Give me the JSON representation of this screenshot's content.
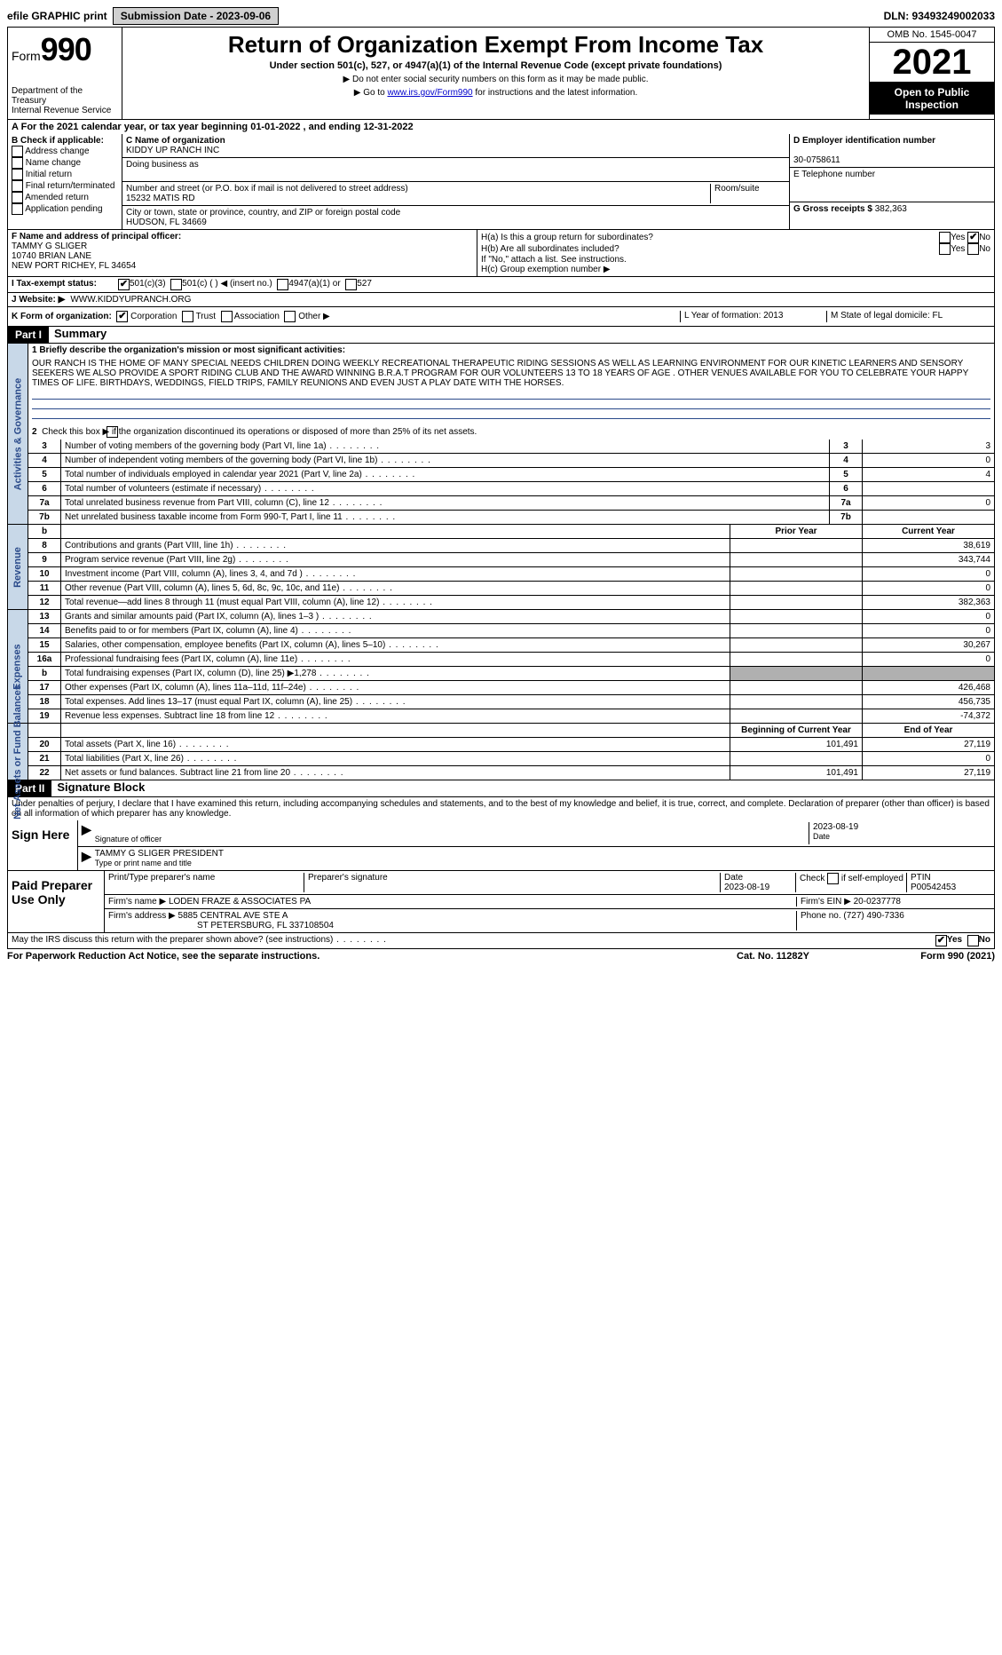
{
  "topbar": {
    "efile": "efile GRAPHIC print",
    "subdate_label": "Submission Date - 2023-09-06",
    "dln": "DLN: 93493249002033"
  },
  "header": {
    "form_word": "Form",
    "form_num": "990",
    "dept": "Department of the Treasury",
    "irs": "Internal Revenue Service",
    "title": "Return of Organization Exempt From Income Tax",
    "sub": "Under section 501(c), 527, or 4947(a)(1) of the Internal Revenue Code (except private foundations)",
    "note1": "▶ Do not enter social security numbers on this form as it may be made public.",
    "note2_pre": "▶ Go to ",
    "note2_link": "www.irs.gov/Form990",
    "note2_post": " for instructions and the latest information.",
    "omb": "OMB No. 1545-0047",
    "year": "2021",
    "openpub": "Open to Public Inspection"
  },
  "period": "For the 2021 calendar year, or tax year beginning 01-01-2022   , and ending 12-31-2022",
  "sectionB": {
    "label": "B Check if applicable:",
    "items": [
      "Address change",
      "Name change",
      "Initial return",
      "Final return/terminated",
      "Amended return",
      "Application pending"
    ]
  },
  "sectionC": {
    "name_label": "C Name of organization",
    "name": "KIDDY UP RANCH INC",
    "dba_label": "Doing business as",
    "addr_label": "Number and street (or P.O. box if mail is not delivered to street address)",
    "room_label": "Room/suite",
    "addr": "15232 MATIS RD",
    "city_label": "City or town, state or province, country, and ZIP or foreign postal code",
    "city": "HUDSON, FL  34669"
  },
  "sectionD": {
    "label": "D Employer identification number",
    "val": "30-0758611"
  },
  "sectionE": {
    "label": "E Telephone number"
  },
  "sectionG": {
    "label": "G Gross receipts $",
    "val": "382,363"
  },
  "sectionF": {
    "label": "F  Name and address of principal officer:",
    "name": "TAMMY G SLIGER",
    "addr1": "10740 BRIAN LANE",
    "addr2": "NEW PORT RICHEY, FL  34654"
  },
  "sectionH": {
    "a": "H(a)  Is this a group return for subordinates?",
    "b": "H(b)  Are all subordinates included?",
    "b_note": "If \"No,\" attach a list. See instructions.",
    "c": "H(c)  Group exemption number ▶",
    "yes": "Yes",
    "no": "No"
  },
  "rowI": {
    "label": "I  Tax-exempt status:",
    "opt1": "501(c)(3)",
    "opt2": "501(c) (  ) ◀ (insert no.)",
    "opt3": "4947(a)(1) or",
    "opt4": "527"
  },
  "rowJ": {
    "label": "J  Website: ▶",
    "val": "WWW.KIDDYUPRANCH.ORG"
  },
  "rowK": {
    "label": "K Form of organization:",
    "opts": [
      "Corporation",
      "Trust",
      "Association",
      "Other ▶"
    ],
    "L": "L Year of formation: 2013",
    "M": "M State of legal domicile: FL"
  },
  "part1": {
    "bar": "Part I",
    "title": "Summary",
    "l1_label": "1  Briefly describe the organization's mission or most significant activities:",
    "mission": "OUR RANCH IS THE HOME OF MANY SPECIAL NEEDS CHILDREN DOING WEEKLY RECREATIONAL THERAPEUTIC RIDING SESSIONS AS WELL AS LEARNING ENVIRONMENT FOR OUR KINETIC LEARNERS AND SENSORY SEEKERS WE ALSO PROVIDE A SPORT RIDING CLUB AND THE AWARD WINNING B.R.A.T PROGRAM FOR OUR VOLUNTEERS 13 TO 18 YEARS OF AGE . OTHER VENUES AVAILABLE FOR YOU TO CELEBRATE YOUR HAPPY TIMES OF LIFE. BIRTHDAYS, WEDDINGS, FIELD TRIPS, FAMILY REUNIONS AND EVEN JUST A PLAY DATE WITH THE HORSES."
  },
  "gov": {
    "vlabel": "Activities & Governance",
    "l2": "Check this box ▶      if the organization discontinued its operations or disposed of more than 25% of its net assets.",
    "rows": [
      {
        "n": "3",
        "t": "Number of voting members of the governing body (Part VI, line 1a)",
        "l": "3",
        "v": "3"
      },
      {
        "n": "4",
        "t": "Number of independent voting members of the governing body (Part VI, line 1b)",
        "l": "4",
        "v": "0"
      },
      {
        "n": "5",
        "t": "Total number of individuals employed in calendar year 2021 (Part V, line 2a)",
        "l": "5",
        "v": "4"
      },
      {
        "n": "6",
        "t": "Total number of volunteers (estimate if necessary)",
        "l": "6",
        "v": ""
      },
      {
        "n": "7a",
        "t": "Total unrelated business revenue from Part VIII, column (C), line 12",
        "l": "7a",
        "v": "0"
      },
      {
        "n": "7b",
        "t": "Net unrelated business taxable income from Form 990-T, Part I, line 11",
        "l": "7b",
        "v": ""
      }
    ]
  },
  "rev": {
    "vlabel": "Revenue",
    "hdr_prior": "Prior Year",
    "hdr_curr": "Current Year",
    "rows": [
      {
        "n": "8",
        "t": "Contributions and grants (Part VIII, line 1h)",
        "p": "",
        "c": "38,619"
      },
      {
        "n": "9",
        "t": "Program service revenue (Part VIII, line 2g)",
        "p": "",
        "c": "343,744"
      },
      {
        "n": "10",
        "t": "Investment income (Part VIII, column (A), lines 3, 4, and 7d )",
        "p": "",
        "c": "0"
      },
      {
        "n": "11",
        "t": "Other revenue (Part VIII, column (A), lines 5, 6d, 8c, 9c, 10c, and 11e)",
        "p": "",
        "c": "0"
      },
      {
        "n": "12",
        "t": "Total revenue—add lines 8 through 11 (must equal Part VIII, column (A), line 12)",
        "p": "",
        "c": "382,363"
      }
    ]
  },
  "exp": {
    "vlabel": "Expenses",
    "rows": [
      {
        "n": "13",
        "t": "Grants and similar amounts paid (Part IX, column (A), lines 1–3 )",
        "p": "",
        "c": "0"
      },
      {
        "n": "14",
        "t": "Benefits paid to or for members (Part IX, column (A), line 4)",
        "p": "",
        "c": "0"
      },
      {
        "n": "15",
        "t": "Salaries, other compensation, employee benefits (Part IX, column (A), lines 5–10)",
        "p": "",
        "c": "30,267"
      },
      {
        "n": "16a",
        "t": "Professional fundraising fees (Part IX, column (A), line 11e)",
        "p": "",
        "c": "0"
      },
      {
        "n": "b",
        "t": "Total fundraising expenses (Part IX, column (D), line 25) ▶1,278",
        "p": "grey",
        "c": "grey"
      },
      {
        "n": "17",
        "t": "Other expenses (Part IX, column (A), lines 11a–11d, 11f–24e)",
        "p": "",
        "c": "426,468"
      },
      {
        "n": "18",
        "t": "Total expenses. Add lines 13–17 (must equal Part IX, column (A), line 25)",
        "p": "",
        "c": "456,735"
      },
      {
        "n": "19",
        "t": "Revenue less expenses. Subtract line 18 from line 12",
        "p": "",
        "c": "-74,372"
      }
    ]
  },
  "net": {
    "vlabel": "Net Assets or Fund Balances",
    "hdr_begin": "Beginning of Current Year",
    "hdr_end": "End of Year",
    "rows": [
      {
        "n": "20",
        "t": "Total assets (Part X, line 16)",
        "b": "101,491",
        "e": "27,119"
      },
      {
        "n": "21",
        "t": "Total liabilities (Part X, line 26)",
        "b": "",
        "e": "0"
      },
      {
        "n": "22",
        "t": "Net assets or fund balances. Subtract line 21 from line 20",
        "b": "101,491",
        "e": "27,119"
      }
    ]
  },
  "part2": {
    "bar": "Part II",
    "title": "Signature Block",
    "decl": "Under penalties of perjury, I declare that I have examined this return, including accompanying schedules and statements, and to the best of my knowledge and belief, it is true, correct, and complete. Declaration of preparer (other than officer) is based on all information of which preparer has any knowledge."
  },
  "sign": {
    "label": "Sign Here",
    "sig_label": "Signature of officer",
    "date": "2023-08-19",
    "date_label": "Date",
    "name": "TAMMY G SLIGER  PRESIDENT",
    "name_label": "Type or print name and title"
  },
  "prep": {
    "label": "Paid Preparer Use Only",
    "h1": "Print/Type preparer's name",
    "h2": "Preparer's signature",
    "h3": "Date",
    "date": "2023-08-19",
    "h4": "Check      if self-employed",
    "h5": "PTIN",
    "ptin": "P00542453",
    "firm_label": "Firm's name    ▶",
    "firm": "LODEN FRAZE & ASSOCIATES PA",
    "ein_label": "Firm's EIN ▶",
    "ein": "20-0237778",
    "addr_label": "Firm's address ▶",
    "addr1": "5885 CENTRAL AVE STE A",
    "addr2": "ST PETERSBURG, FL  337108504",
    "phone_label": "Phone no.",
    "phone": "(727) 490-7336"
  },
  "discuss": {
    "q": "May the IRS discuss this return with the preparer shown above? (see instructions)",
    "yes": "Yes",
    "no": "No"
  },
  "footer": {
    "left": "For Paperwork Reduction Act Notice, see the separate instructions.",
    "mid": "Cat. No. 11282Y",
    "right": "Form 990 (2021)"
  }
}
